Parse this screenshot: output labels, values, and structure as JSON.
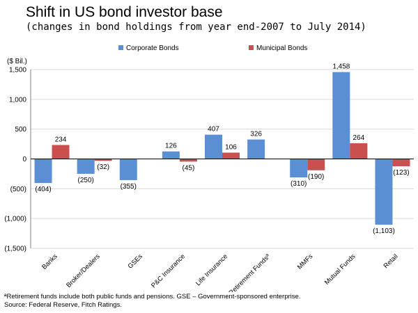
{
  "title": "Shift in US bond investor base",
  "subtitle": "(changes in bond holdings from year end-2007 to July 2014)",
  "footnote": {
    "line1": "ªRetirement funds include both public funds and pensions. GSE – Government-sponsored enterprise.",
    "line2": "Source: Federal Reserve, Fitch Ratings."
  },
  "colors": {
    "corporate": "#5b8fd3",
    "municipal": "#c9504f",
    "grid": "#d9d9d9"
  },
  "chart_data": {
    "type": "bar",
    "unit_label": "($ Bil.)",
    "categories": [
      "Banks",
      "Broker/Dealers",
      "GSEs",
      "P&C Insurance",
      "Life Insurance",
      "Retirement Fundsª",
      "MMFs",
      "Mutual Funds",
      "Retail"
    ],
    "series": [
      {
        "name": "Corporate Bonds",
        "values": [
          -404,
          -250,
          -355,
          126,
          407,
          326,
          -310,
          1458,
          -1103
        ],
        "labels": [
          "(404)",
          "(250)",
          "(355)",
          "126",
          "407",
          "326",
          "(310)",
          "1,458",
          "(1,103)"
        ]
      },
      {
        "name": "Municipal Bonds",
        "values": [
          234,
          -32,
          null,
          -45,
          106,
          null,
          -190,
          264,
          -123
        ],
        "labels": [
          "234",
          "(32)",
          "",
          "(45)",
          "106",
          "",
          "(190)",
          "264",
          "(123)"
        ]
      }
    ],
    "ylim": [
      -1500,
      1500
    ],
    "yticks": [
      1500,
      1000,
      500,
      0,
      -500,
      -1000,
      -1500
    ],
    "ytick_labels": [
      "1,500",
      "1,000",
      "500",
      "0",
      "(500)",
      "(1,000)",
      "(1,500)"
    ],
    "grid": true,
    "legend_position": "top"
  }
}
